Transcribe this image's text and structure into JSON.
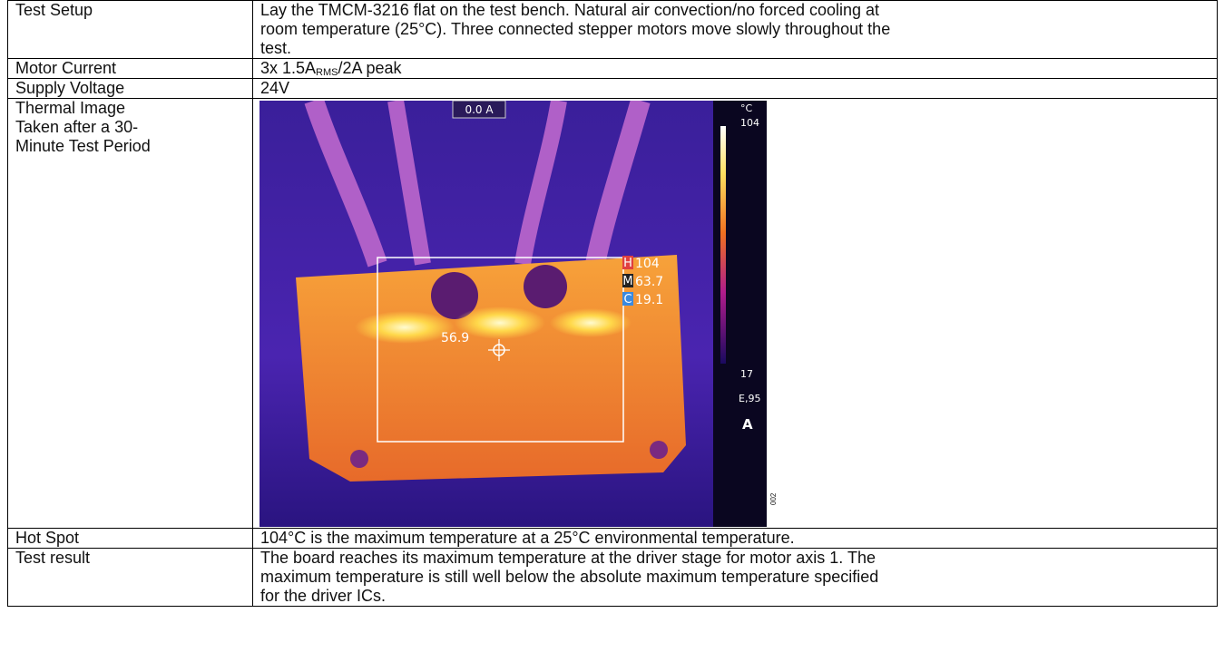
{
  "rows": [
    {
      "label": [
        "Test Setup"
      ],
      "text": [
        "Lay the TMCM-3216 flat on the test bench. Natural air convection/no forced cooling at",
        "room temperature (25°C). Three connected stepper motors move slowly throughout the",
        "test."
      ]
    },
    {
      "label": [
        "Motor Current"
      ],
      "text": {
        "prefix": "3x 1.5A",
        "subscript": "RMS",
        "suffix": "/2A peak"
      }
    },
    {
      "label": [
        "Supply Voltage"
      ],
      "text": [
        "24V"
      ]
    },
    {
      "label": [
        "Thermal Image",
        "Taken after a 30-",
        "Minute Test Period"
      ],
      "image": {
        "current": "0.0 A",
        "unit": "°C",
        "scale_max": "104",
        "scale_min": "17",
        "emissivity": "E,95",
        "mode": "A",
        "hot_tag": "H",
        "hot": "104",
        "mid_tag": "M",
        "mid": "63.7",
        "cold_tag": "C",
        "cold": "19.1",
        "spot": "56.9",
        "figure_id": "002"
      }
    },
    {
      "label": [
        "Hot Spot"
      ],
      "text": [
        "104°C is the maximum temperature at a 25°C environmental temperature."
      ]
    },
    {
      "label": [
        "Test result"
      ],
      "text": [
        "The board reaches its maximum temperature at the driver stage for motor axis 1. The",
        "maximum temperature is still well below the absolute maximum temperature specified",
        "for the driver ICs."
      ]
    }
  ]
}
